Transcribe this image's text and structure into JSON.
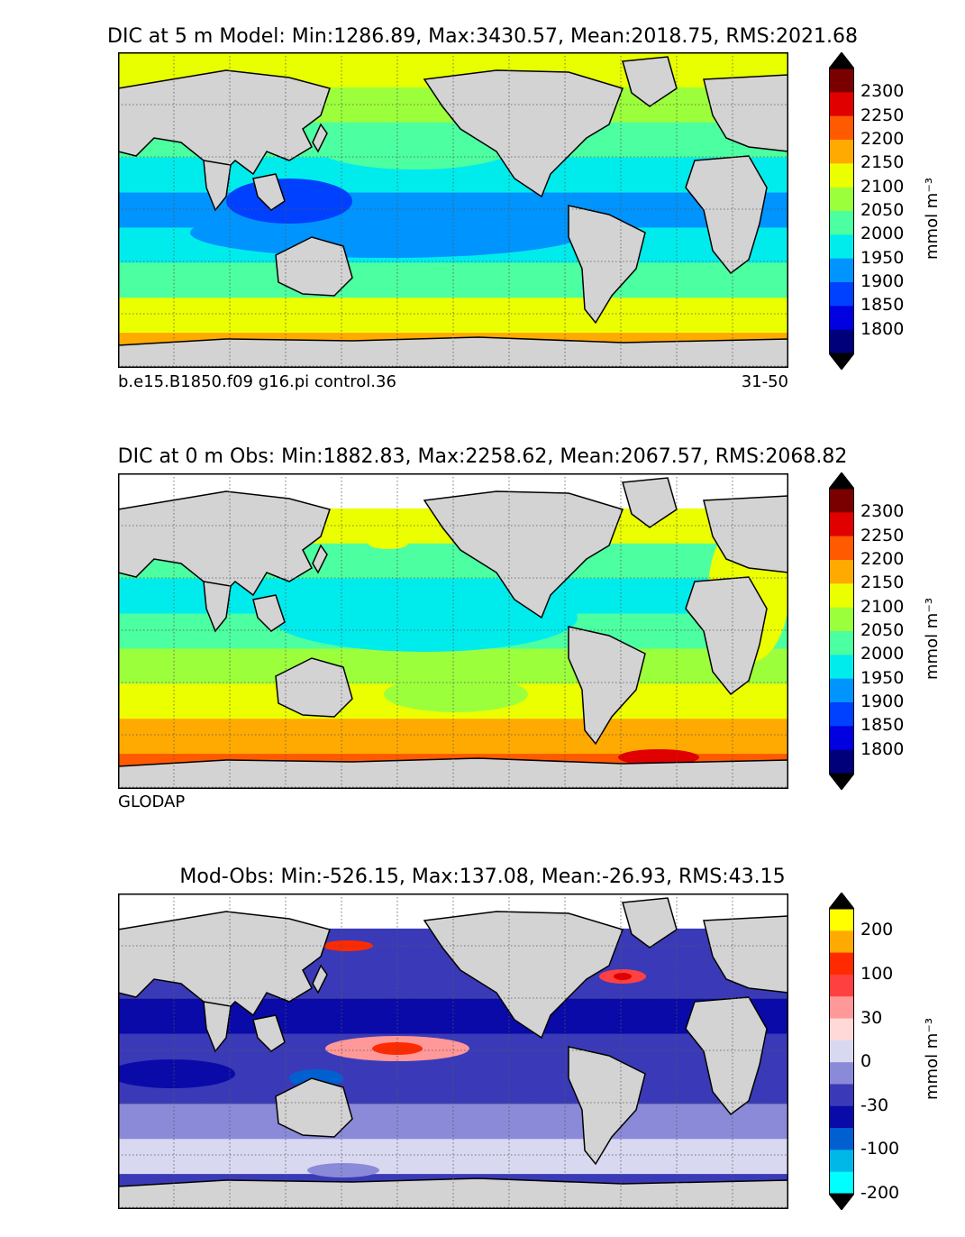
{
  "panels": [
    {
      "title": "DIC at 5 m Model: Min:1286.89, Max:3430.57, Mean:2018.75, RMS:2021.68",
      "caption_left": "b.e15.B1850.f09 g16.pi control.36",
      "caption_right": "31-50",
      "colorbar": {
        "labels": [
          "2300",
          "2250",
          "2200",
          "2150",
          "2100",
          "2050",
          "2000",
          "1950",
          "1900",
          "1850",
          "1800"
        ],
        "colors": [
          "#7a0000",
          "#e00000",
          "#ff5a00",
          "#ffaa00",
          "#ecff00",
          "#9cff3c",
          "#4cffa0",
          "#00ecec",
          "#0094ff",
          "#0040ff",
          "#0000e0",
          "#00007a"
        ],
        "unit": "mmol m⁻³"
      },
      "bands": [
        "#e8ff00",
        "#9cff3c",
        "#4cffa0",
        "#00ecec",
        "#0094ff",
        "#00ecec",
        "#4cffa0",
        "#ecff00",
        "#ffaa00"
      ]
    },
    {
      "title": "DIC at 0 m Obs: Min:1882.83, Max:2258.62, Mean:2067.57, RMS:2068.82",
      "caption_left": "GLODAP",
      "caption_right": "",
      "colorbar": {
        "labels": [
          "2300",
          "2250",
          "2200",
          "2150",
          "2100",
          "2050",
          "2000",
          "1950",
          "1900",
          "1850",
          "1800"
        ],
        "colors": [
          "#7a0000",
          "#e00000",
          "#ff5a00",
          "#ffaa00",
          "#ecff00",
          "#9cff3c",
          "#4cffa0",
          "#00ecec",
          "#0094ff",
          "#0040ff",
          "#0000e0",
          "#00007a"
        ],
        "unit": "mmol m⁻³"
      },
      "bands": [
        "#ffffff",
        "#ecff00",
        "#4cffa0",
        "#00ecec",
        "#4cffa0",
        "#9cff3c",
        "#ecff00",
        "#ffaa00",
        "#ff5a00"
      ]
    },
    {
      "title": "Mod-Obs: Min:-526.15, Max:137.08, Mean:-26.93, RMS:43.15",
      "caption_left": "",
      "caption_right": "",
      "colorbar": {
        "labels": [
          "200",
          "100",
          "30",
          "0",
          "-30",
          "-100",
          "-200"
        ],
        "colors": [
          "#ffff00",
          "#ffaa00",
          "#ff2a00",
          "#ff4040",
          "#ff9898",
          "#ffd8d8",
          "#d8d8f0",
          "#8a8ad8",
          "#3a3ab8",
          "#0a0aa8",
          "#0060d0",
          "#00b8e8",
          "#00ffff"
        ],
        "unit": "mmol m⁻³"
      },
      "bands": [
        "#ffffff",
        "#3a3ab8",
        "#3a3ab8",
        "#0a0aa8",
        "#3a3ab8",
        "#3a3ab8",
        "#8a8ad8",
        "#d8d8f0",
        "#3a3ab8"
      ]
    }
  ]
}
